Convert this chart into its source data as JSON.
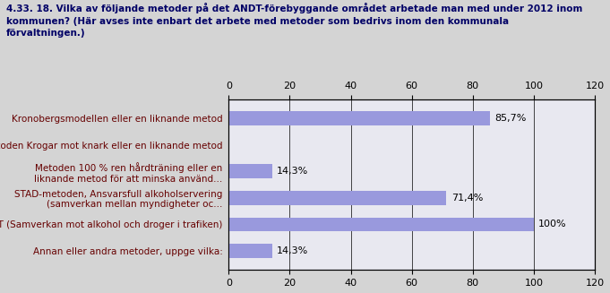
{
  "title_line1": "4.33. 18. Vilka av följande metoder på det ANDT-förebyggande området arbetade man med under 2012 inom",
  "title_line2": "kommunen? (Här avses inte enbart det arbete med metoder som bedrivs inom den kommunala",
  "title_line3": "förvaltningen.)",
  "categories": [
    "Kronobergsmodellen eller en liknande metod",
    "Metoden Krogar mot knark eller en liknande metod",
    "Metoden 100 % ren hårdträning eller en\nliknande metod för att minska använd...",
    "STAD-metoden, Ansvarsfull alkoholservering\n(samverkan mellan myndigheter oc...",
    "SMADIT (Samverkan mot alkohol och droger i trafiken)",
    "Annan eller andra metoder, uppge vilka:"
  ],
  "values": [
    85.7,
    0,
    14.3,
    71.4,
    100,
    14.3
  ],
  "labels": [
    "85,7%",
    "",
    "14,3%",
    "71,4%",
    "100%",
    "14,3%"
  ],
  "bar_color": "#9999dd",
  "outer_bg": "#d4d4d4",
  "plot_bg": "#e8e8f0",
  "label_text_color": "#660000",
  "title_color": "#000066",
  "xlim": [
    0,
    120
  ],
  "xticks": [
    0,
    20,
    40,
    60,
    80,
    100,
    120
  ],
  "title_fontsize": 7.5,
  "label_fontsize": 7.5,
  "tick_fontsize": 8,
  "bar_label_fontsize": 8
}
